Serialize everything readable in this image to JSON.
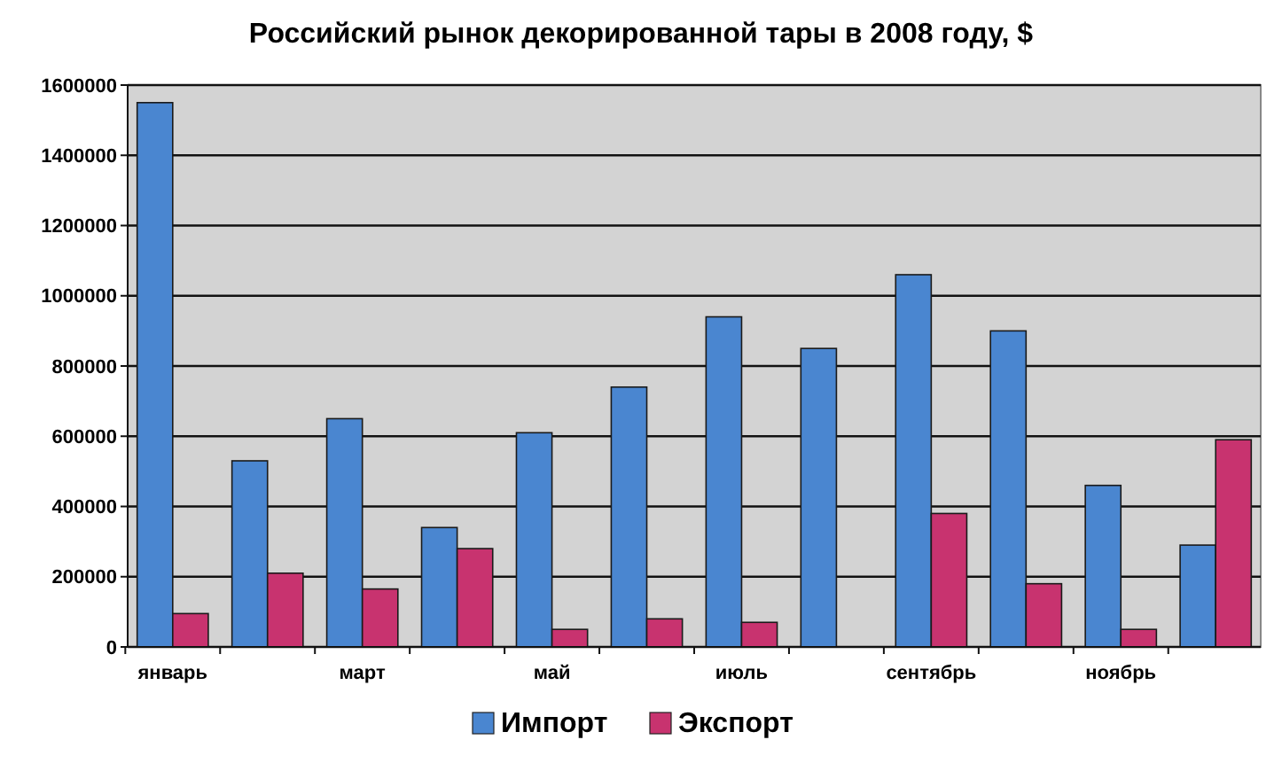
{
  "chart_data": {
    "type": "bar",
    "title": "Российский  рынок декорированной тары в 2008 году, $",
    "categories": [
      "январь",
      null,
      "март",
      null,
      "май",
      null,
      "июль",
      null,
      "сентябрь",
      null,
      "ноябрь",
      null
    ],
    "series": [
      {
        "name": "Импорт",
        "color": "#4a86d0",
        "values": [
          1550000,
          530000,
          650000,
          340000,
          610000,
          740000,
          940000,
          850000,
          1060000,
          900000,
          460000,
          290000
        ]
      },
      {
        "name": "Экспорт",
        "color": "#c8336f",
        "values": [
          95000,
          210000,
          165000,
          280000,
          50000,
          80000,
          70000,
          null,
          380000,
          180000,
          50000,
          590000
        ]
      }
    ],
    "ylim": [
      0,
      1600000
    ],
    "yticks": [
      0,
      200000,
      400000,
      600000,
      800000,
      1000000,
      1200000,
      1400000,
      1600000
    ],
    "grid": "y",
    "legend": "bottom"
  }
}
